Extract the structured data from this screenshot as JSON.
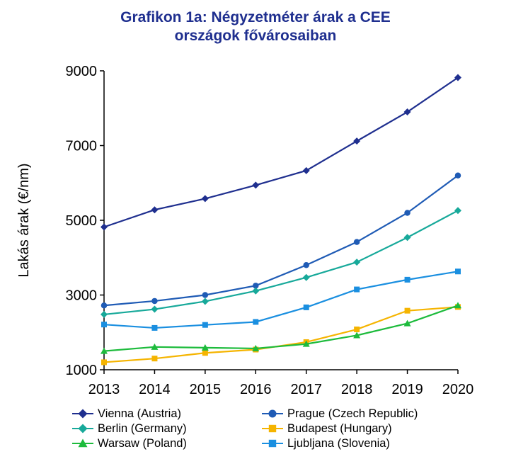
{
  "chart_data": {
    "type": "line",
    "title_line1": "Grafikon 1a: Négyzetméter árak a CEE",
    "title_line2": "országok fővárosaiban",
    "ylabel": "Lakás árak (€/nm)",
    "xlabel": "",
    "x": [
      "2013",
      "2014",
      "2015",
      "2016",
      "2017",
      "2018",
      "2019",
      "2020"
    ],
    "ylim": [
      1000,
      9000
    ],
    "yticks": [
      "1000",
      "3000",
      "5000",
      "7000",
      "9000"
    ],
    "grid": false,
    "legend_placement": "bottom",
    "series": [
      {
        "name": "Vienna (Austria)",
        "color": "#1f2f8f",
        "marker": "diamond",
        "values": [
          4820,
          5280,
          5580,
          5940,
          6330,
          7120,
          7900,
          8820
        ]
      },
      {
        "name": "Prague (Czech Republic)",
        "color": "#1f5bb5",
        "marker": "circle",
        "values": [
          2720,
          2840,
          3000,
          3250,
          3800,
          4420,
          5200,
          6200
        ]
      },
      {
        "name": "Berlin (Germany)",
        "color": "#17a99a",
        "marker": "diamond",
        "values": [
          2480,
          2620,
          2830,
          3110,
          3470,
          3880,
          4540,
          5260
        ]
      },
      {
        "name": "Budapest (Hungary)",
        "color": "#f5b400",
        "marker": "square",
        "values": [
          1200,
          1300,
          1450,
          1540,
          1740,
          2080,
          2580,
          2680
        ]
      },
      {
        "name": "Warsaw (Poland)",
        "color": "#1dbb3c",
        "marker": "triangle",
        "values": [
          1500,
          1610,
          1590,
          1570,
          1690,
          1920,
          2240,
          2720
        ]
      },
      {
        "name": "Ljubljana (Slovenia)",
        "color": "#1a8fe0",
        "marker": "square",
        "values": [
          2210,
          2120,
          2200,
          2280,
          2670,
          3150,
          3410,
          3630
        ]
      }
    ]
  }
}
